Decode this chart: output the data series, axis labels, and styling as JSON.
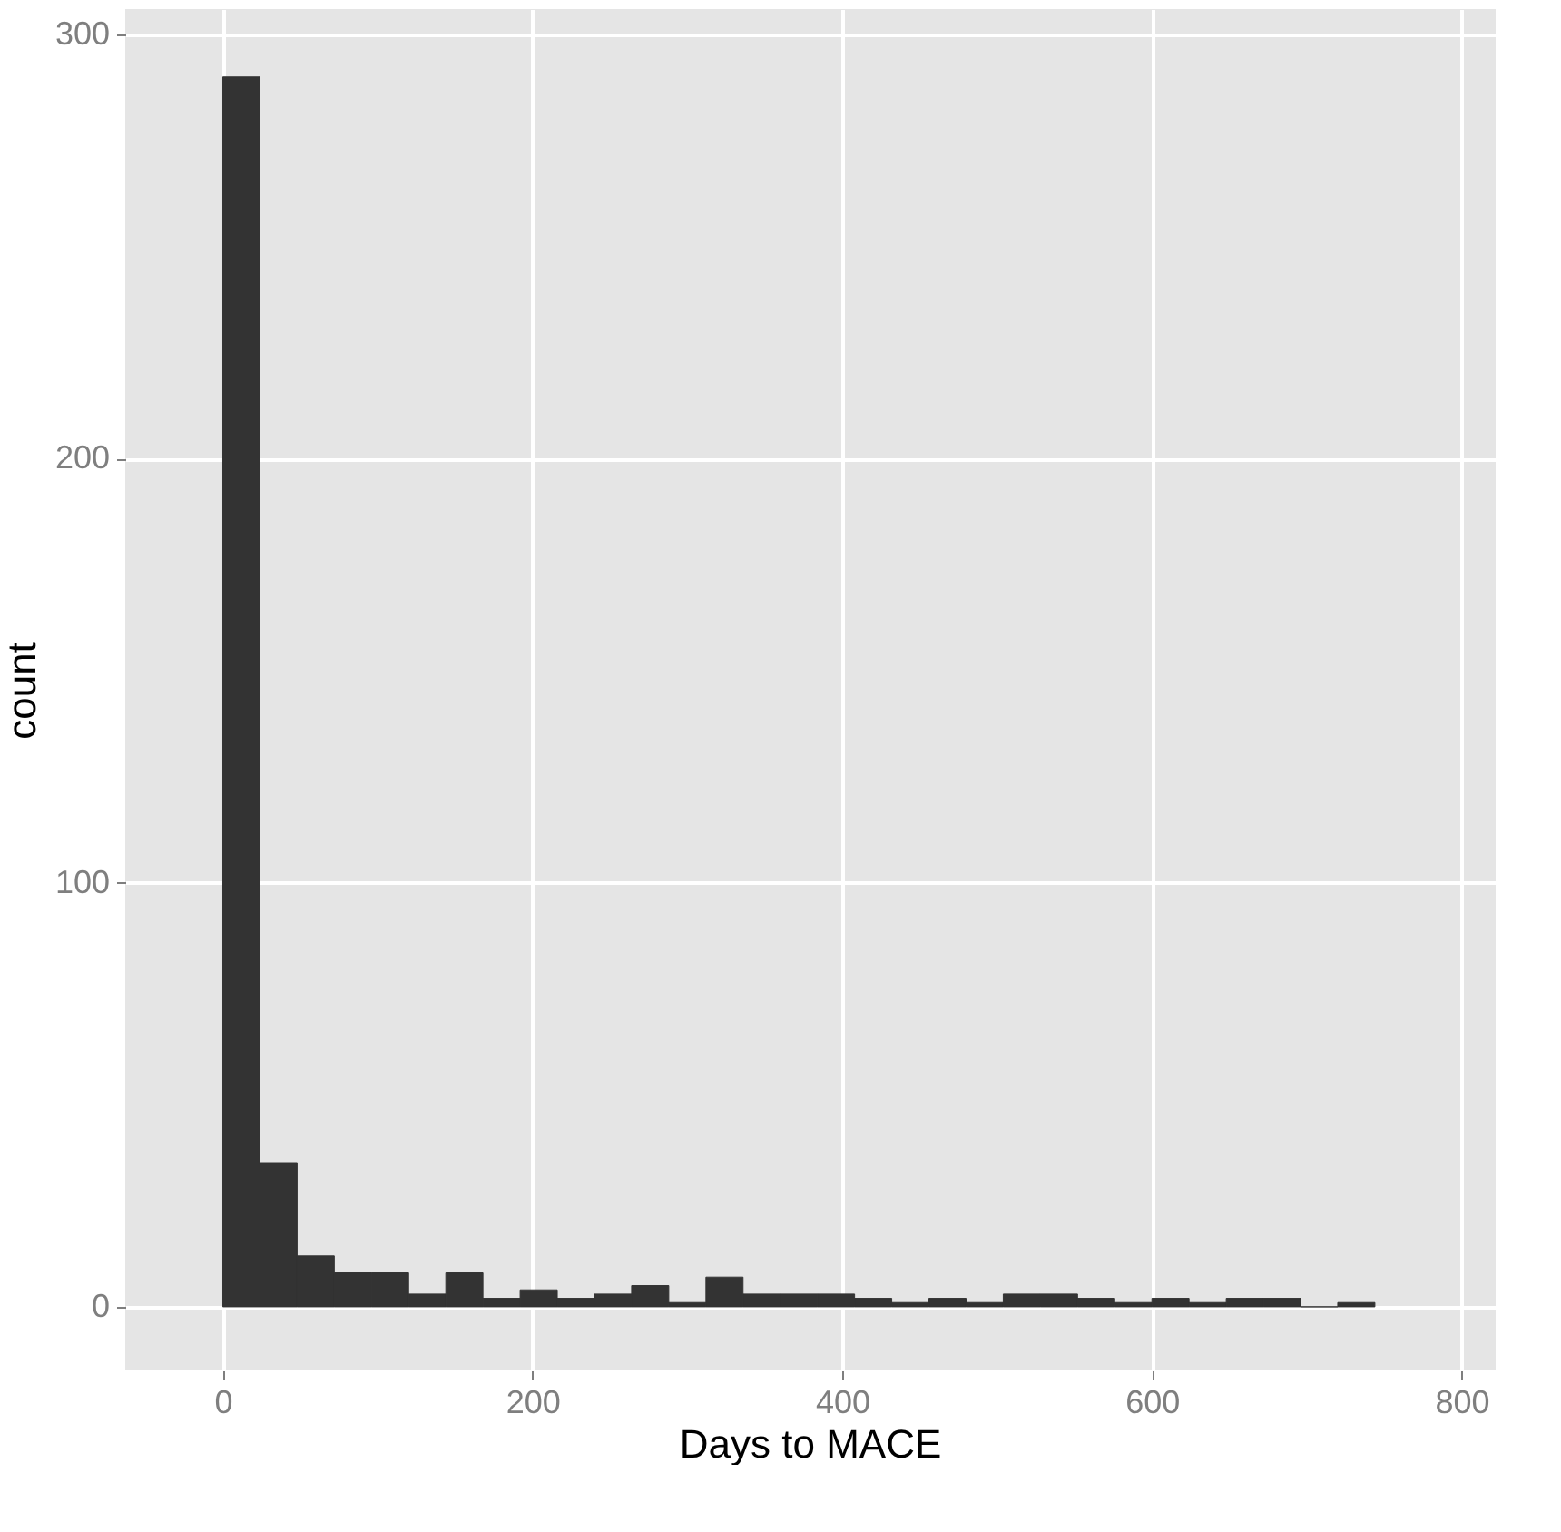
{
  "chart_data": {
    "type": "histogram",
    "xlabel": "Days to MACE",
    "ylabel": "count",
    "color": "#333333",
    "bins": [
      0,
      24,
      48,
      72,
      96,
      120,
      144,
      168,
      192,
      216,
      240,
      264,
      288,
      312,
      336,
      360,
      384,
      408,
      432,
      456,
      480,
      504,
      528,
      552,
      576,
      600,
      624,
      648,
      672,
      696,
      720,
      744
    ],
    "values": [
      290,
      34,
      12,
      8,
      8,
      3,
      8,
      2,
      4,
      2,
      3,
      5,
      1,
      7,
      3,
      3,
      3,
      2,
      1,
      2,
      1,
      3,
      3,
      2,
      1,
      2,
      1,
      2,
      2,
      0,
      1
    ],
    "xlim": [
      -63,
      822
    ],
    "ylim": [
      -15,
      306
    ],
    "xticks": [
      0,
      200,
      400,
      600,
      800
    ],
    "yticks": [
      0,
      100,
      200,
      300
    ],
    "grid": true
  }
}
